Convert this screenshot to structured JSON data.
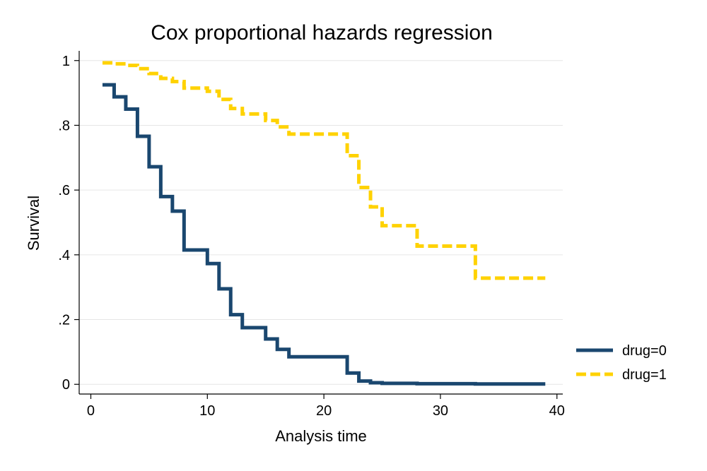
{
  "chart_data": {
    "type": "line",
    "step": true,
    "title": "Cox proportional hazards regression",
    "xlabel": "Analysis time",
    "ylabel": "Survival",
    "xlim": [
      -1,
      40.5
    ],
    "ylim": [
      -0.03,
      1.03
    ],
    "xticks": [
      0,
      10,
      20,
      30,
      40
    ],
    "xtick_labels": [
      "0",
      "10",
      "20",
      "30",
      "40"
    ],
    "yticks": [
      0,
      0.2,
      0.4,
      0.6,
      0.8,
      1
    ],
    "ytick_labels": [
      "0",
      ".2",
      ".4",
      ".6",
      ".8",
      "1"
    ],
    "grid": true,
    "legend_position": "right",
    "series": [
      {
        "name": "drug=0",
        "color": "#1a476f",
        "style": "solid",
        "x": [
          1,
          2,
          3,
          4,
          5,
          6,
          7,
          8,
          10,
          11,
          12,
          13,
          15,
          16,
          17,
          22,
          23,
          24,
          25,
          28,
          33,
          39
        ],
        "y": [
          0.925,
          0.888,
          0.85,
          0.766,
          0.672,
          0.58,
          0.535,
          0.415,
          0.373,
          0.295,
          0.215,
          0.175,
          0.14,
          0.108,
          0.085,
          0.035,
          0.01,
          0.005,
          0.003,
          0.002,
          0.001,
          0.001
        ]
      },
      {
        "name": "drug=1",
        "color": "#ffd200",
        "style": "dashed",
        "x": [
          1,
          2,
          3,
          4,
          5,
          6,
          7,
          8,
          10,
          11,
          12,
          13,
          15,
          16,
          17,
          22,
          23,
          24,
          25,
          28,
          33,
          39
        ],
        "y": [
          0.993,
          0.99,
          0.985,
          0.975,
          0.96,
          0.945,
          0.935,
          0.915,
          0.905,
          0.88,
          0.852,
          0.835,
          0.815,
          0.795,
          0.773,
          0.706,
          0.608,
          0.548,
          0.49,
          0.427,
          0.328,
          0.328
        ]
      }
    ]
  }
}
